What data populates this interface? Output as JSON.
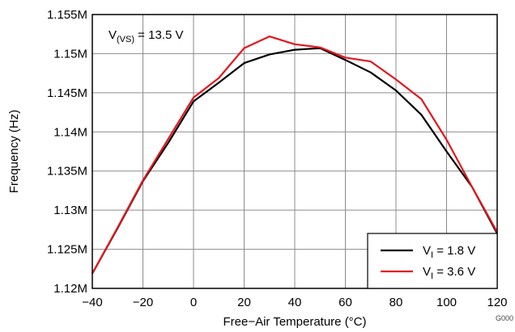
{
  "chart_data": {
    "type": "line",
    "xlabel": "Free−Air Temperature (°C)",
    "ylabel": "Frequency (Hz)",
    "xlim": [
      -40,
      120
    ],
    "ylim": [
      1.12,
      1.155
    ],
    "x_ticks": [
      -40,
      -20,
      0,
      20,
      40,
      60,
      80,
      100,
      120
    ],
    "x_tick_labels": [
      "−40",
      "−20",
      "0",
      "20",
      "40",
      "60",
      "80",
      "100",
      "120"
    ],
    "y_ticks": [
      1.12,
      1.125,
      1.13,
      1.135,
      1.14,
      1.145,
      1.15,
      1.155
    ],
    "y_tick_labels": [
      "1.12M",
      "1.125M",
      "1.13M",
      "1.135M",
      "1.14M",
      "1.145M",
      "1.15M",
      "1.155M"
    ],
    "y_unit_note": "M",
    "grid": true,
    "legend_position": "bottom-right",
    "annotation": {
      "main": "V",
      "sub": "(VS)",
      "rest": " = 13.5 V"
    },
    "figure_id": "G000",
    "x": [
      -40,
      -30,
      -20,
      -10,
      0,
      10,
      20,
      30,
      40,
      50,
      60,
      70,
      80,
      90,
      100,
      110,
      120
    ],
    "series": [
      {
        "name": "V_I = 1.8 V",
        "legend_main": "V",
        "legend_sub": "I",
        "legend_rest": " = 1.8 V",
        "color": "#000000",
        "values": [
          1.1219,
          1.1277,
          1.1337,
          1.1386,
          1.1439,
          1.1463,
          1.1488,
          1.1499,
          1.1505,
          1.1507,
          1.1492,
          1.1476,
          1.1453,
          1.1422,
          1.1375,
          1.133,
          1.127
        ]
      },
      {
        "name": "V_I = 3.6 V",
        "legend_main": "V",
        "legend_sub": "I",
        "legend_rest": " = 3.6 V",
        "color": "#e2171e",
        "values": [
          1.1219,
          1.1278,
          1.1338,
          1.1391,
          1.1444,
          1.1469,
          1.1507,
          1.1522,
          1.1512,
          1.1508,
          1.1495,
          1.149,
          1.1467,
          1.1442,
          1.139,
          1.133,
          1.1272
        ]
      }
    ]
  }
}
